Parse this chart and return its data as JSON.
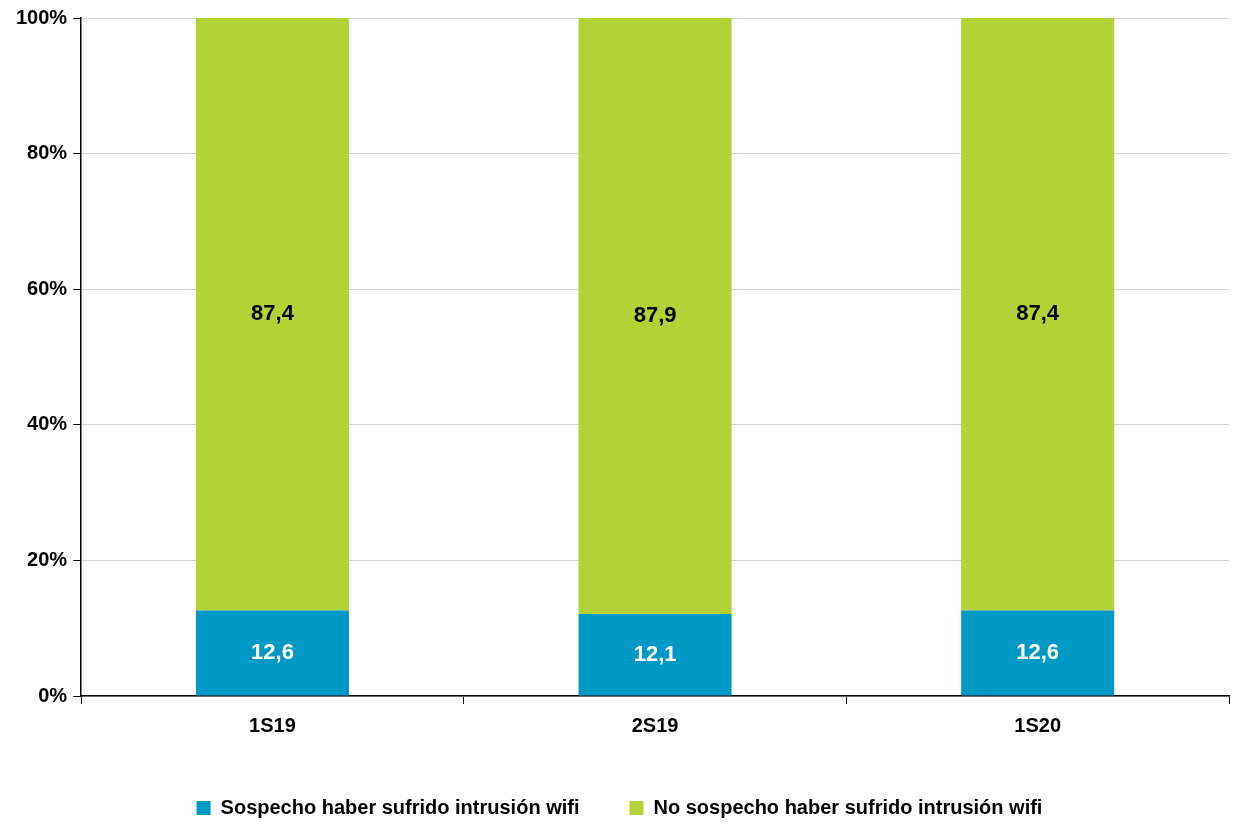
{
  "chart_data": {
    "type": "bar",
    "stacked": true,
    "categories": [
      "1S19",
      "2S19",
      "1S20"
    ],
    "series": [
      {
        "name": "Sospecho haber sufrido intrusión wifi",
        "color": "#0099c6",
        "values": [
          12.6,
          12.1,
          12.6
        ],
        "value_labels": [
          "12,6",
          "12,1",
          "12,6"
        ]
      },
      {
        "name": "No sospecho haber sufrido intrusión wifi",
        "color": "#b2d235",
        "values": [
          87.4,
          87.9,
          87.4
        ],
        "value_labels": [
          "87,4",
          "87,9",
          "87,4"
        ]
      }
    ],
    "ylim": [
      0,
      100
    ],
    "yticks": [
      {
        "value": 0,
        "label": "0%"
      },
      {
        "value": 20,
        "label": "20%"
      },
      {
        "value": 40,
        "label": "40%"
      },
      {
        "value": 60,
        "label": "60%"
      },
      {
        "value": 80,
        "label": "80%"
      },
      {
        "value": 100,
        "label": "100%"
      }
    ],
    "grid": "y",
    "legend": "bottom"
  }
}
